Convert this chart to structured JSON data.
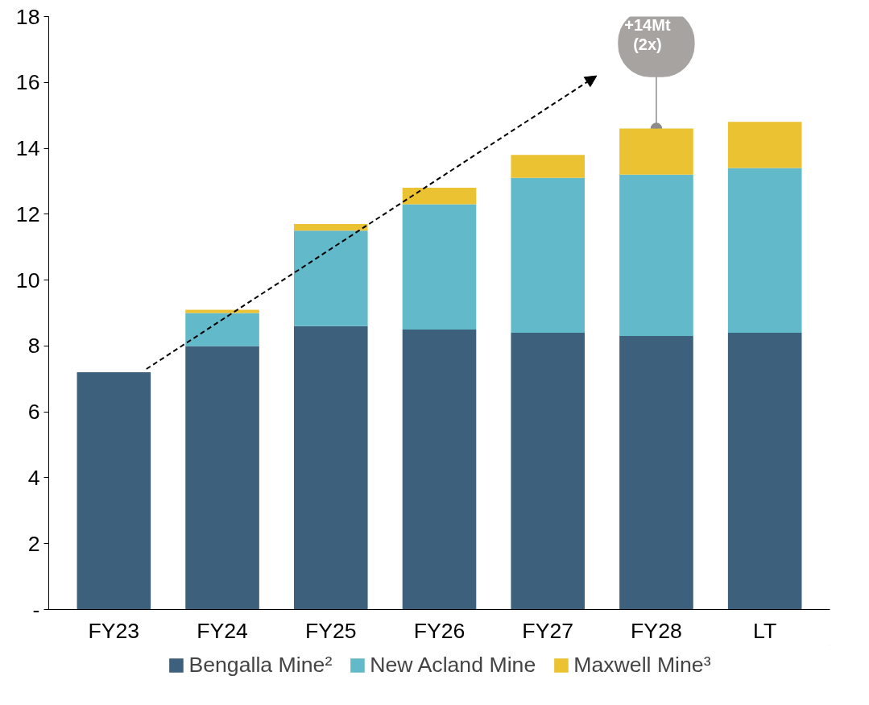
{
  "chart_data": {
    "type": "bar",
    "stacked": true,
    "categories": [
      "FY23",
      "FY24",
      "FY25",
      "FY26",
      "FY27",
      "FY28",
      "LT"
    ],
    "series": [
      {
        "name": "Bengalla Mine²",
        "color": "#3d617c",
        "values": [
          7.2,
          8.0,
          8.6,
          8.5,
          8.4,
          8.3,
          8.4
        ]
      },
      {
        "name": "New Acland Mine",
        "color": "#62b9c9",
        "values": [
          0,
          1.0,
          2.9,
          3.8,
          4.7,
          4.9,
          5.0
        ]
      },
      {
        "name": "Maxwell Mine³",
        "color": "#ebc232",
        "values": [
          0,
          0.1,
          0.2,
          0.5,
          0.7,
          1.4,
          1.4
        ]
      }
    ],
    "ylim": [
      0,
      18
    ],
    "yticks": [
      {
        "value": 0,
        "label": "-"
      },
      2,
      4,
      6,
      8,
      10,
      12,
      14,
      16,
      18
    ],
    "grid": false,
    "legend": "bottom",
    "annotations": [
      {
        "text": "+14Mt\n(2x)",
        "x": "FY28",
        "y": 14.6
      }
    ]
  }
}
